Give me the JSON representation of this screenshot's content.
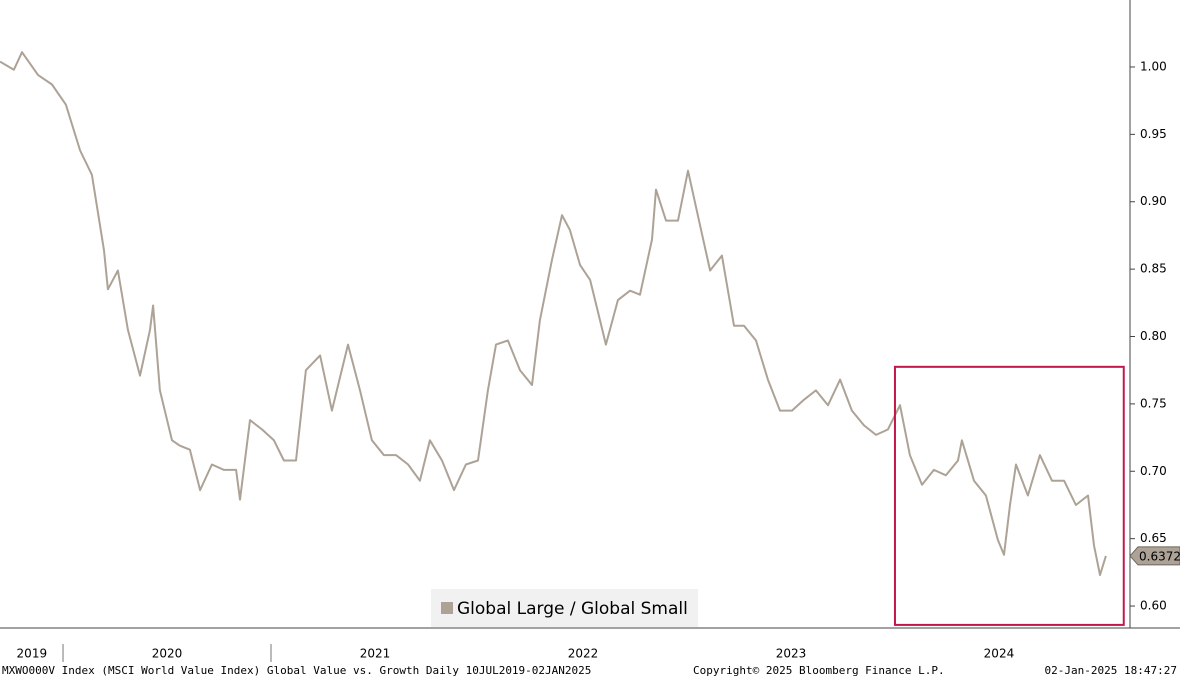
{
  "chart_data": {
    "type": "line",
    "series": [
      {
        "name": "Global Large / Global Small",
        "color": "#ada296",
        "values": [
          1.004,
          0.998,
          1.011,
          0.994,
          0.987,
          0.972,
          0.938,
          0.92,
          0.864,
          0.835,
          0.849,
          0.805,
          0.771,
          0.805,
          0.823,
          0.76,
          0.723,
          0.719,
          0.716,
          0.686,
          0.705,
          0.701,
          0.701,
          0.679,
          0.738,
          0.731,
          0.723,
          0.708,
          0.708,
          0.775,
          0.786,
          0.745,
          0.794,
          0.76,
          0.723,
          0.712,
          0.712,
          0.705,
          0.693,
          0.723,
          0.708,
          0.686,
          0.705,
          0.708,
          0.76,
          0.794,
          0.797,
          0.775,
          0.764,
          0.812,
          0.857,
          0.89,
          0.879,
          0.853,
          0.842,
          0.812,
          0.794,
          0.827,
          0.834,
          0.831,
          0.872,
          0.909,
          0.886,
          0.886,
          0.923,
          0.883,
          0.849,
          0.86,
          0.808,
          0.808,
          0.797,
          0.768,
          0.745,
          0.745,
          0.753,
          0.76,
          0.749,
          0.768,
          0.745,
          0.734,
          0.727,
          0.731,
          0.749,
          0.712,
          0.69,
          0.701,
          0.697,
          0.708,
          0.723,
          0.693,
          0.682,
          0.649,
          0.638,
          0.675,
          0.705,
          0.682,
          0.712,
          0.693,
          0.693,
          0.675,
          0.682,
          0.645,
          0.623,
          0.6372
        ]
      }
    ],
    "x": [
      2019.697,
      2019.764,
      2019.803,
      2019.88,
      2019.947,
      2020.014,
      2020.082,
      2020.139,
      2020.197,
      2020.216,
      2020.264,
      2020.312,
      2020.37,
      2020.418,
      2020.433,
      2020.466,
      2020.524,
      2020.562,
      2020.61,
      2020.659,
      2020.716,
      2020.774,
      2020.832,
      2020.851,
      2020.899,
      2020.957,
      2021.014,
      2021.062,
      2021.12,
      2021.168,
      2021.236,
      2021.293,
      2021.37,
      2021.428,
      2021.485,
      2021.543,
      2021.601,
      2021.659,
      2021.716,
      2021.764,
      2021.822,
      2021.88,
      2021.937,
      2021.995,
      2022.043,
      2022.082,
      2022.139,
      2022.197,
      2022.255,
      2022.293,
      2022.351,
      2022.399,
      2022.437,
      2022.486,
      2022.534,
      2022.582,
      2022.61,
      2022.668,
      2022.726,
      2022.774,
      2022.832,
      2022.851,
      2022.899,
      2022.957,
      2023.005,
      2023.062,
      2023.111,
      2023.168,
      2023.226,
      2023.274,
      2023.332,
      2023.389,
      2023.447,
      2023.505,
      2023.562,
      2023.62,
      2023.678,
      2023.736,
      2023.793,
      2023.851,
      2023.909,
      2023.966,
      2024.024,
      2024.072,
      2024.13,
      2024.187,
      2024.245,
      2024.303,
      2024.322,
      2024.38,
      2024.437,
      2024.495,
      2024.524,
      2024.553,
      2024.582,
      2024.639,
      2024.697,
      2024.755,
      2024.813,
      2024.87,
      2024.928,
      2024.957,
      2024.986,
      2025.014
    ],
    "xlim": [
      2019.697,
      2025.106
    ],
    "xticks": [
      {
        "value": 2020,
        "label": ""
      },
      {
        "value": 2021,
        "label": ""
      }
    ],
    "xtick_labels": [
      {
        "value": 2019.85,
        "label": "2019"
      },
      {
        "value": 2020.5,
        "label": "2020"
      },
      {
        "value": 2021.5,
        "label": "2021"
      },
      {
        "value": 2022.5,
        "label": "2022"
      },
      {
        "value": 2023.5,
        "label": "2023"
      },
      {
        "value": 2024.5,
        "label": "2024"
      }
    ],
    "ylim": [
      0.5837,
      1.0497
    ],
    "yticks": [
      {
        "value": 0.6,
        "label": "0.60"
      },
      {
        "value": 0.65,
        "label": "0.65"
      },
      {
        "value": 0.7,
        "label": "0.70"
      },
      {
        "value": 0.75,
        "label": "0.75"
      },
      {
        "value": 0.8,
        "label": "0.80"
      },
      {
        "value": 0.85,
        "label": "0.85"
      },
      {
        "value": 0.9,
        "label": "0.90"
      },
      {
        "value": 0.95,
        "label": "0.95"
      },
      {
        "value": 1.0,
        "label": "1.00"
      }
    ],
    "highlight": {
      "x": [
        2024.0,
        2025.1
      ],
      "y": [
        0.586,
        0.7775
      ],
      "color": "#c2174b"
    },
    "legend": "bottom"
  },
  "footer": {
    "left": "MXWO000V Index (MSCI World Value Index) Global Value vs. Growth  Daily 10JUL2019-02JAN2025",
    "center": "Copyright© 2025 Bloomberg Finance L.P.",
    "right": "02-Jan-2025 18:47:27"
  }
}
